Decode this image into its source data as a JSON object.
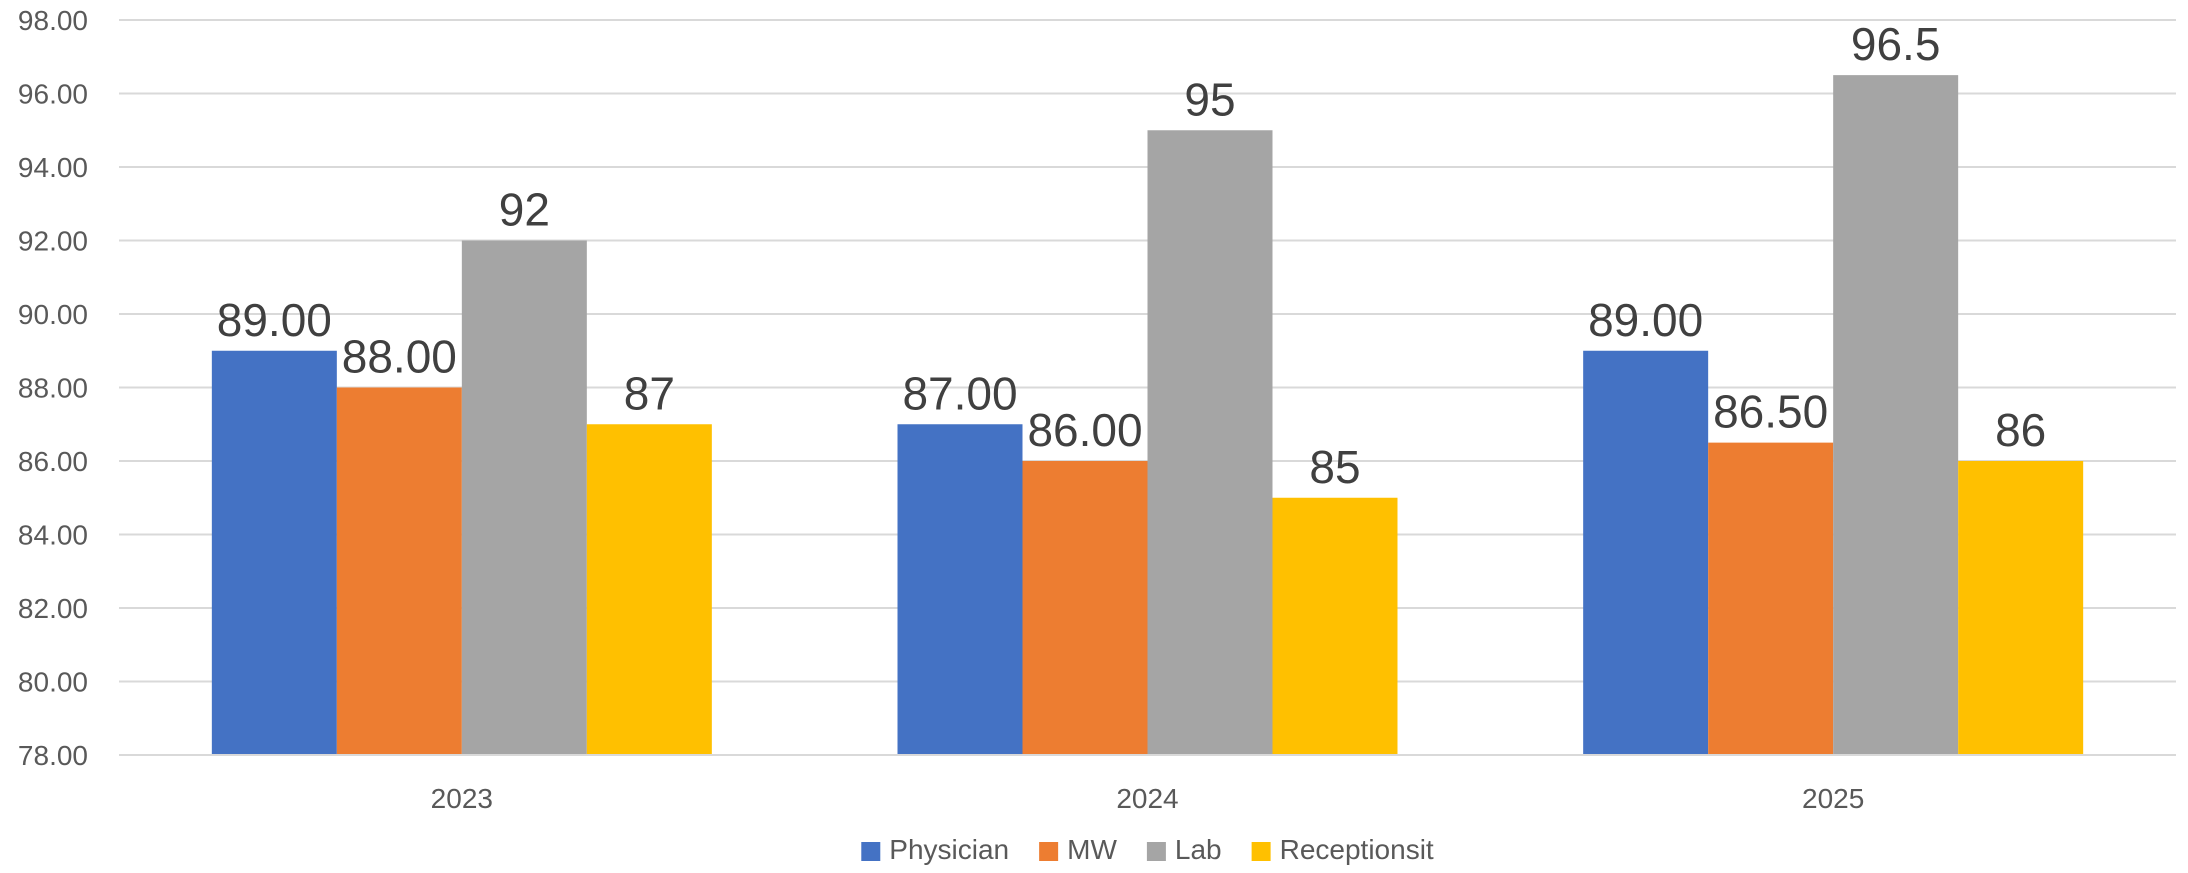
{
  "chart_data": {
    "type": "bar",
    "categories": [
      "2023",
      "2024",
      "2025"
    ],
    "series": [
      {
        "name": "Physician",
        "color": "#4472C4",
        "values": [
          89.0,
          87.0,
          89.0
        ],
        "labels": [
          "89.00",
          "87.00",
          "89.00"
        ]
      },
      {
        "name": "MW",
        "color": "#ED7D31",
        "values": [
          88.0,
          86.0,
          86.5
        ],
        "labels": [
          "88.00",
          "86.00",
          "86.50"
        ]
      },
      {
        "name": "Lab",
        "color": "#A5A5A5",
        "values": [
          92,
          95,
          96.5
        ],
        "labels": [
          "92",
          "95",
          "96.5"
        ]
      },
      {
        "name": "Receptionsit",
        "color": "#FFC000",
        "values": [
          87,
          85,
          86
        ],
        "labels": [
          "87",
          "85",
          "86"
        ]
      }
    ],
    "ylim": [
      78,
      98
    ],
    "yticks": [
      "78.00",
      "80.00",
      "82.00",
      "84.00",
      "86.00",
      "88.00",
      "90.00",
      "92.00",
      "94.00",
      "96.00",
      "98.00"
    ],
    "grid": true,
    "legend_position": "bottom"
  }
}
